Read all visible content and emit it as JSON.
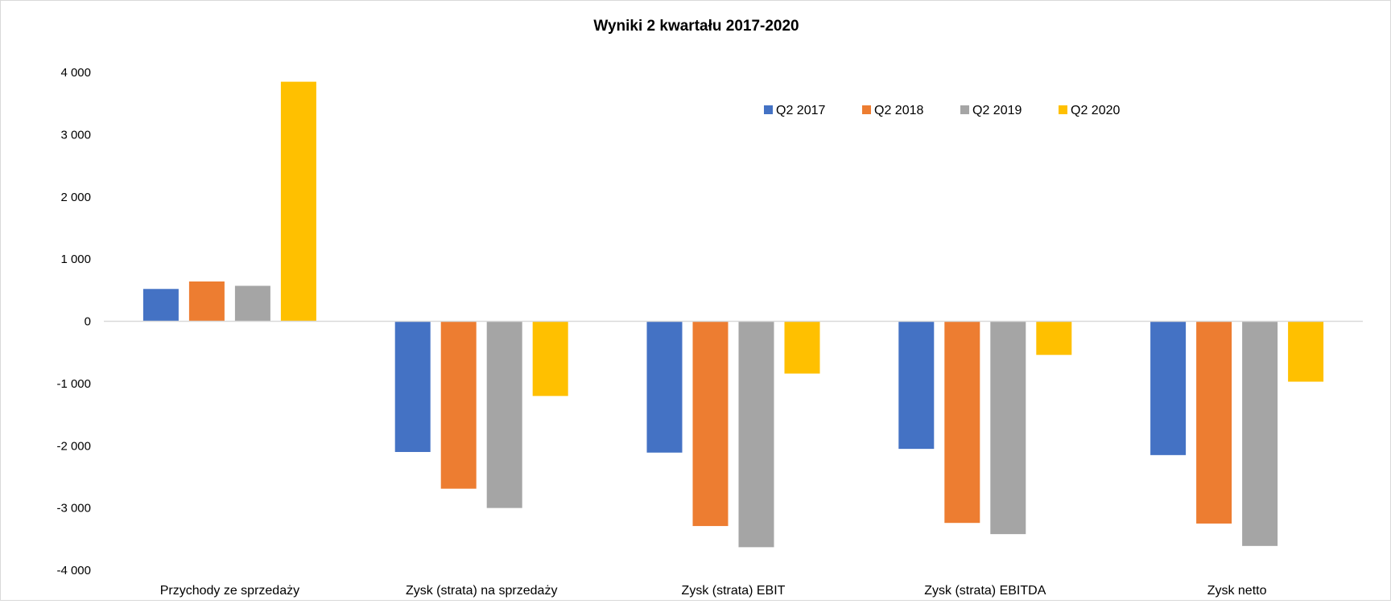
{
  "chart_data": {
    "type": "bar",
    "title": "Wyniki 2 kwartału 2017-2020",
    "xlabel": "",
    "ylabel": "",
    "ylim": [
      -4000,
      4000
    ],
    "yticks": [
      4000,
      3000,
      2000,
      1000,
      0,
      -1000,
      -2000,
      -3000,
      -4000
    ],
    "ytick_labels": [
      "4 000",
      "3 000",
      "2 000",
      "1 000",
      "0",
      "-1 000",
      "-2 000",
      "-3 000",
      "-4 000"
    ],
    "grid": false,
    "legend_position": "top-right",
    "categories": [
      "Przychody ze sprzedaży",
      "Zysk (strata) na sprzedaży",
      "Zysk (strata) EBIT",
      "Zysk (strata) EBITDA",
      "Zysk netto"
    ],
    "series": [
      {
        "name": "Q2 2017",
        "color": "#4472C4",
        "values": [
          520,
          -2100,
          -2110,
          -2050,
          -2150
        ]
      },
      {
        "name": "Q2 2018",
        "color": "#ED7D31",
        "values": [
          640,
          -2690,
          -3290,
          -3240,
          -3250
        ]
      },
      {
        "name": "Q2 2019",
        "color": "#A5A5A5",
        "values": [
          570,
          -3000,
          -3630,
          -3420,
          -3610
        ]
      },
      {
        "name": "Q2 2020",
        "color": "#FFC000",
        "values": [
          3850,
          -1200,
          -840,
          -540,
          -970
        ]
      }
    ]
  }
}
